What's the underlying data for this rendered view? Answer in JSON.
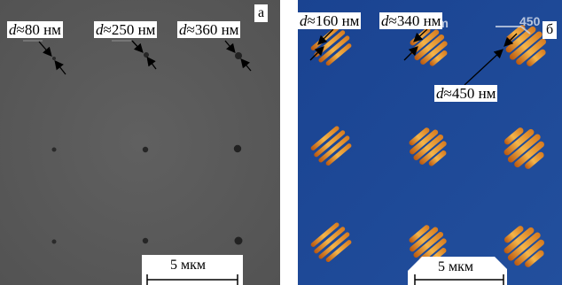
{
  "panel_a": {
    "letter": "а",
    "labels": [
      {
        "var": "d",
        "rest": "≈80 нм"
      },
      {
        "var": "d",
        "rest": "≈250 нм"
      },
      {
        "var": "d",
        "rest": "≈360 нм"
      }
    ],
    "scale_bar": "5 мкм"
  },
  "panel_b": {
    "letter": "б",
    "labels": [
      {
        "var": "d",
        "rest": "≈160 нм"
      },
      {
        "var": "d",
        "rest": "≈340 нм"
      },
      {
        "var": "d",
        "rest": "≈450 нм"
      }
    ],
    "faint_text": [
      "nm",
      "450"
    ],
    "scale_bar": "5 мкм"
  },
  "colors": {
    "sem_background": "#5b5b5b",
    "afm_background": "#1d4b98",
    "afm_stripe": "#f0a63a",
    "afm_stripe_dark": "#c35f12"
  }
}
